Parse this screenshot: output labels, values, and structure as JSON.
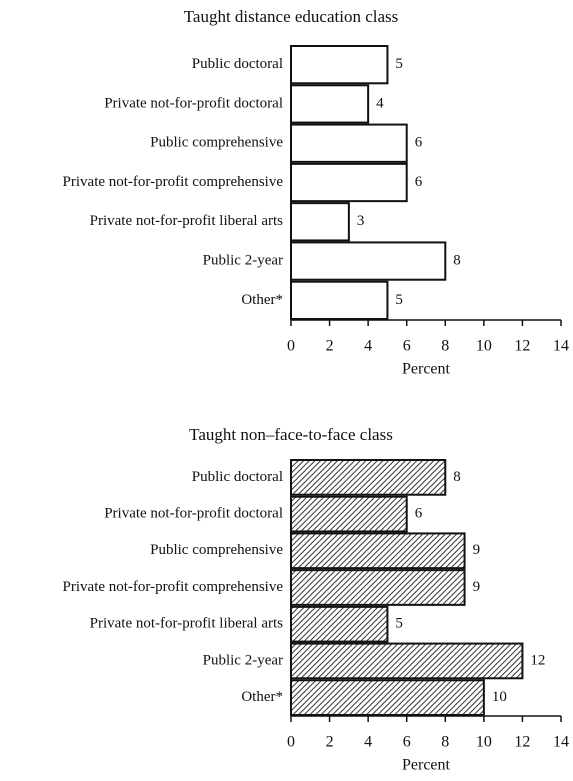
{
  "chart_data": [
    {
      "type": "bar",
      "orientation": "horizontal",
      "title": "Taught distance education class",
      "x_label": "Percent",
      "categories": [
        "Public doctoral",
        "Private not-for-profit doctoral",
        "Public comprehensive",
        "Private not-for-profit comprehensive",
        "Private not-for-profit liberal arts",
        "Public 2-year",
        "Other*"
      ],
      "values": [
        5,
        4,
        6,
        6,
        3,
        8,
        5
      ],
      "color": "#ffffff",
      "hatch": false,
      "xlim": [
        0,
        14
      ],
      "xticks": [
        0,
        2,
        4,
        6,
        8,
        10,
        12,
        14
      ]
    },
    {
      "type": "bar",
      "orientation": "horizontal",
      "title": "Taught non–face-to-face class",
      "x_label": "Percent",
      "categories": [
        "Public doctoral",
        "Private not-for-profit doctoral",
        "Public comprehensive",
        "Private not-for-profit comprehensive",
        "Private not-for-profit liberal arts",
        "Public 2-year",
        "Other*"
      ],
      "values": [
        8,
        6,
        9,
        9,
        5,
        12,
        10
      ],
      "color": "#333333",
      "hatch": true,
      "xlim": [
        0,
        14
      ],
      "xticks": [
        0,
        2,
        4,
        6,
        8,
        10,
        12,
        14
      ]
    }
  ]
}
